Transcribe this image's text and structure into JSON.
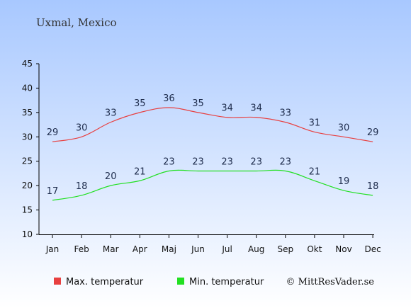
{
  "chart_data": {
    "type": "line",
    "title": "Uxmal, Mexico",
    "categories": [
      "Jan",
      "Feb",
      "Mar",
      "Apr",
      "Maj",
      "Jun",
      "Jul",
      "Aug",
      "Sep",
      "Okt",
      "Nov",
      "Dec"
    ],
    "series": [
      {
        "name": "Max. temperatur",
        "color": "#e84040",
        "values": [
          29,
          30,
          33,
          35,
          36,
          35,
          34,
          34,
          33,
          31,
          30,
          29
        ]
      },
      {
        "name": "Min. temperatur",
        "color": "#22e022",
        "values": [
          17,
          18,
          20,
          21,
          23,
          23,
          23,
          23,
          23,
          21,
          19,
          18
        ]
      }
    ],
    "ylim": [
      10,
      45
    ],
    "yticks": [
      10,
      15,
      20,
      25,
      30,
      35,
      40,
      45
    ],
    "legend_position": "bottom"
  },
  "credit": "© MittResVader.se",
  "colors": {
    "background_top": "#a8c8ff",
    "background_bottom": "#ffffff",
    "label": "#1f2d4d"
  }
}
